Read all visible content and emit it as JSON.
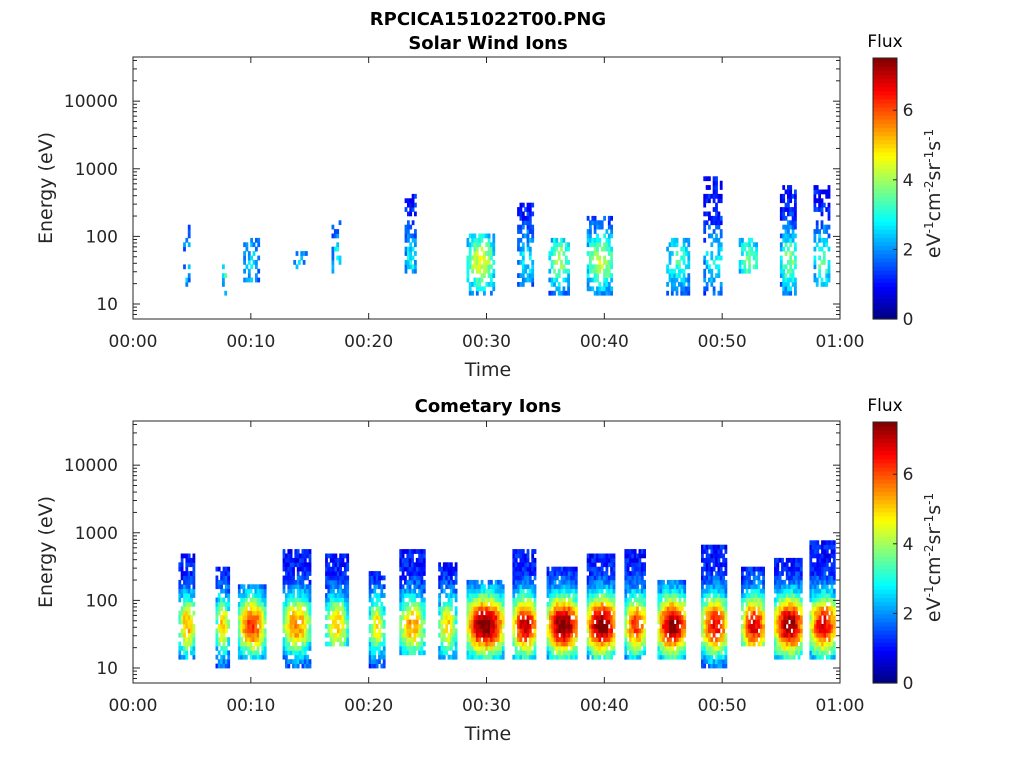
{
  "figure_title": "RPCICA151022T00.PNG",
  "chart_data": [
    {
      "type": "heatmap",
      "title": "Solar Wind Ions",
      "xlabel": "Time",
      "ylabel": "Energy (eV)",
      "y_scale": "log",
      "ylim": [
        6,
        45000
      ],
      "xlim_minutes": [
        0,
        60
      ],
      "x_ticks": [
        "00:00",
        "00:10",
        "00:20",
        "00:30",
        "00:40",
        "00:50",
        "01:00"
      ],
      "y_ticks": [
        "10",
        "100",
        "1000",
        "10000"
      ],
      "colorbar": {
        "label": "Flux",
        "units": "eV-1cm-2sr-1s-1",
        "range": [
          0,
          7.5
        ],
        "ticks": [
          "0",
          "2",
          "4",
          "6"
        ],
        "colormap": "jet"
      },
      "grid": false,
      "bursts": [
        {
          "t": 4.5,
          "w": 0.5,
          "lo": 18,
          "hi": 130,
          "peak": 1.6,
          "sparse": 0.7
        },
        {
          "t": 7.7,
          "w": 0.3,
          "lo": 12,
          "hi": 40,
          "peak": 3.0,
          "sparse": 0.6
        },
        {
          "t": 10.0,
          "w": 1.3,
          "lo": 20,
          "hi": 90,
          "peak": 1.5,
          "sparse": 0.55
        },
        {
          "t": 14.0,
          "w": 1.2,
          "lo": 25,
          "hi": 60,
          "peak": 1.2,
          "sparse": 0.7
        },
        {
          "t": 17.2,
          "w": 0.7,
          "lo": 25,
          "hi": 200,
          "peak": 2.0,
          "sparse": 0.6
        },
        {
          "t": 23.5,
          "w": 0.9,
          "lo": 25,
          "hi": 400,
          "peak": 1.8,
          "sparse": 0.45
        },
        {
          "t": 29.4,
          "w": 2.2,
          "lo": 12,
          "hi": 110,
          "peak": 3.4,
          "sparse": 0.35
        },
        {
          "t": 33.3,
          "w": 1.4,
          "lo": 18,
          "hi": 290,
          "peak": 1.6,
          "sparse": 0.35
        },
        {
          "t": 36.1,
          "w": 1.7,
          "lo": 12,
          "hi": 90,
          "peak": 3.0,
          "sparse": 0.35
        },
        {
          "t": 39.6,
          "w": 2.2,
          "lo": 12,
          "hi": 200,
          "peak": 3.2,
          "sparse": 0.35
        },
        {
          "t": 46.2,
          "w": 1.9,
          "lo": 12,
          "hi": 90,
          "peak": 2.2,
          "sparse": 0.4
        },
        {
          "t": 49.2,
          "w": 1.6,
          "lo": 12,
          "hi": 700,
          "peak": 1.8,
          "sparse": 0.45
        },
        {
          "t": 52.2,
          "w": 1.6,
          "lo": 25,
          "hi": 90,
          "peak": 2.6,
          "sparse": 0.4
        },
        {
          "t": 55.6,
          "w": 1.4,
          "lo": 12,
          "hi": 500,
          "peak": 2.8,
          "sparse": 0.35
        },
        {
          "t": 58.4,
          "w": 1.3,
          "lo": 18,
          "hi": 500,
          "peak": 2.5,
          "sparse": 0.45
        }
      ]
    },
    {
      "type": "heatmap",
      "title": "Cometary Ions",
      "xlabel": "Time",
      "ylabel": "Energy (eV)",
      "y_scale": "log",
      "ylim": [
        6,
        45000
      ],
      "xlim_minutes": [
        0,
        60
      ],
      "x_ticks": [
        "00:00",
        "00:10",
        "00:20",
        "00:30",
        "00:40",
        "00:50",
        "01:00"
      ],
      "y_ticks": [
        "10",
        "100",
        "1000",
        "10000"
      ],
      "colorbar": {
        "label": "Flux",
        "units": "eV-1cm-2sr-1s-1",
        "range": [
          0,
          7.5
        ],
        "ticks": [
          "0",
          "2",
          "4",
          "6"
        ],
        "colormap": "jet"
      },
      "grid": false,
      "bursts": [
        {
          "t": 4.5,
          "w": 1.3,
          "lo": 12,
          "hi": 450,
          "peak": 4.4,
          "sparse": 0.15
        },
        {
          "t": 7.5,
          "w": 1.0,
          "lo": 6,
          "hi": 300,
          "peak": 4.2,
          "sparse": 0.2
        },
        {
          "t": 10.0,
          "w": 2.2,
          "lo": 12,
          "hi": 150,
          "peak": 5.2,
          "sparse": 0.1
        },
        {
          "t": 13.8,
          "w": 2.2,
          "lo": 6,
          "hi": 500,
          "peak": 4.6,
          "sparse": 0.15
        },
        {
          "t": 17.2,
          "w": 1.8,
          "lo": 20,
          "hi": 450,
          "peak": 4.0,
          "sparse": 0.15
        },
        {
          "t": 20.6,
          "w": 1.2,
          "lo": 6,
          "hi": 250,
          "peak": 3.8,
          "sparse": 0.2
        },
        {
          "t": 23.6,
          "w": 2.0,
          "lo": 15,
          "hi": 550,
          "peak": 4.4,
          "sparse": 0.12
        },
        {
          "t": 26.6,
          "w": 1.4,
          "lo": 12,
          "hi": 350,
          "peak": 4.0,
          "sparse": 0.2
        },
        {
          "t": 29.8,
          "w": 3.0,
          "lo": 12,
          "hi": 200,
          "peak": 6.6,
          "sparse": 0.05
        },
        {
          "t": 33.2,
          "w": 2.0,
          "lo": 12,
          "hi": 500,
          "peak": 6.0,
          "sparse": 0.1
        },
        {
          "t": 36.4,
          "w": 2.6,
          "lo": 12,
          "hi": 300,
          "peak": 6.6,
          "sparse": 0.05
        },
        {
          "t": 39.7,
          "w": 2.4,
          "lo": 12,
          "hi": 450,
          "peak": 6.6,
          "sparse": 0.08
        },
        {
          "t": 42.6,
          "w": 1.8,
          "lo": 12,
          "hi": 500,
          "peak": 5.2,
          "sparse": 0.12
        },
        {
          "t": 45.7,
          "w": 2.4,
          "lo": 12,
          "hi": 200,
          "peak": 6.4,
          "sparse": 0.08
        },
        {
          "t": 49.3,
          "w": 2.2,
          "lo": 6,
          "hi": 600,
          "peak": 5.6,
          "sparse": 0.1
        },
        {
          "t": 52.6,
          "w": 2.0,
          "lo": 20,
          "hi": 300,
          "peak": 5.8,
          "sparse": 0.1
        },
        {
          "t": 55.6,
          "w": 2.4,
          "lo": 12,
          "hi": 400,
          "peak": 6.4,
          "sparse": 0.06
        },
        {
          "t": 58.5,
          "w": 2.2,
          "lo": 12,
          "hi": 700,
          "peak": 5.8,
          "sparse": 0.1
        }
      ]
    }
  ]
}
